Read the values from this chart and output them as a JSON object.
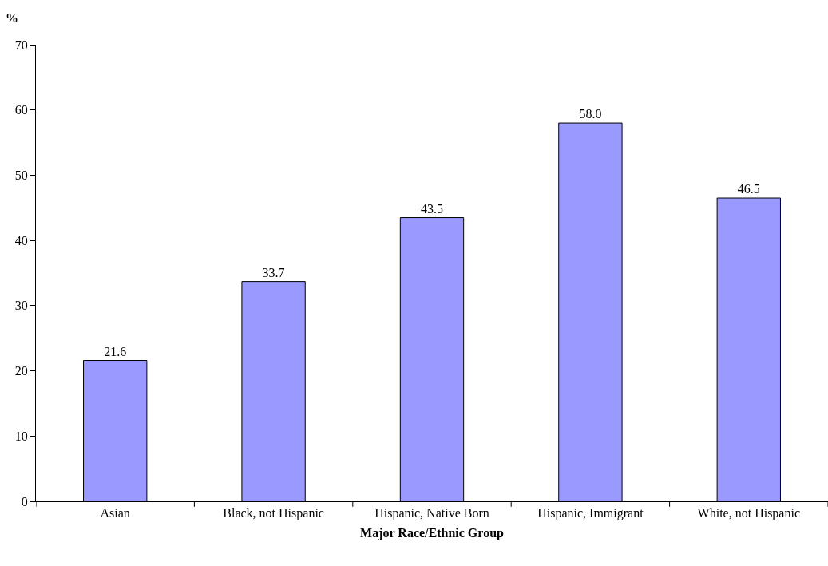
{
  "chart_data": {
    "type": "bar",
    "categories": [
      "Asian",
      "Black, not Hispanic",
      "Hispanic, Native Born",
      "Hispanic, Immigrant",
      "White, not Hispanic"
    ],
    "values": [
      21.6,
      33.7,
      43.5,
      58.0,
      46.5
    ],
    "value_labels": [
      "21.6",
      "33.7",
      "43.5",
      "58.0",
      "46.5"
    ],
    "color": "#9999ff",
    "xlabel": "Major Race/Ethnic Group",
    "ylabel": "%",
    "ylim": [
      0,
      70
    ],
    "yticks": [
      0,
      10,
      20,
      30,
      40,
      50,
      60,
      70
    ],
    "grid": false,
    "legend": false
  }
}
